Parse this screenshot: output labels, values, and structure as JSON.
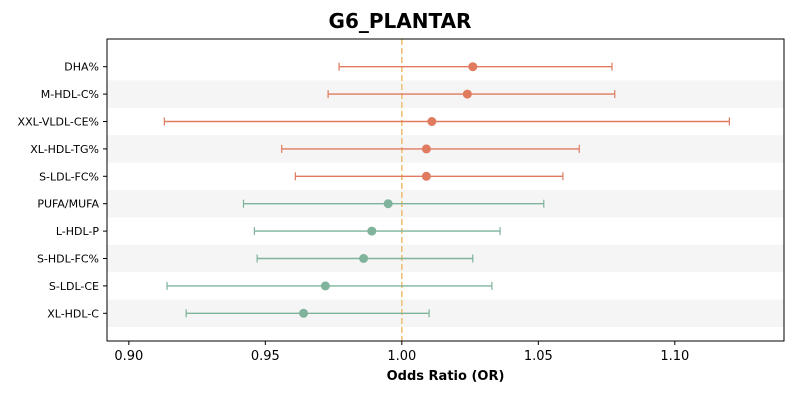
{
  "chart_data": {
    "type": "forest",
    "title": "G6_PLANTAR",
    "xlabel": "Odds Ratio (OR)",
    "ylabel": "",
    "xlim": [
      0.892,
      1.14
    ],
    "x_ticks": [
      "0.90",
      "0.95",
      "1.00",
      "1.05",
      "1.10"
    ],
    "reference_line": 1.0,
    "grid": false,
    "colors": {
      "risk": "#e07b5f",
      "protective": "#7fb39b",
      "reference": "#f0c078",
      "band": "#f5f5f5"
    },
    "rows": [
      {
        "label": "DHA%",
        "or": 1.026,
        "lo": 0.977,
        "hi": 1.077,
        "group": "risk"
      },
      {
        "label": "M-HDL-C%",
        "or": 1.024,
        "lo": 0.973,
        "hi": 1.078,
        "group": "risk"
      },
      {
        "label": "XXL-VLDL-CE%",
        "or": 1.011,
        "lo": 0.913,
        "hi": 1.12,
        "group": "risk"
      },
      {
        "label": "XL-HDL-TG%",
        "or": 1.009,
        "lo": 0.956,
        "hi": 1.065,
        "group": "risk"
      },
      {
        "label": "S-LDL-FC%",
        "or": 1.009,
        "lo": 0.961,
        "hi": 1.059,
        "group": "risk"
      },
      {
        "label": "PUFA/MUFA",
        "or": 0.995,
        "lo": 0.942,
        "hi": 1.052,
        "group": "protective"
      },
      {
        "label": "L-HDL-P",
        "or": 0.989,
        "lo": 0.946,
        "hi": 1.036,
        "group": "protective"
      },
      {
        "label": "S-HDL-FC%",
        "or": 0.986,
        "lo": 0.947,
        "hi": 1.026,
        "group": "protective"
      },
      {
        "label": "S-LDL-CE",
        "or": 0.972,
        "lo": 0.914,
        "hi": 1.033,
        "group": "protective"
      },
      {
        "label": "XL-HDL-C",
        "or": 0.964,
        "lo": 0.921,
        "hi": 1.01,
        "group": "protective"
      }
    ]
  }
}
